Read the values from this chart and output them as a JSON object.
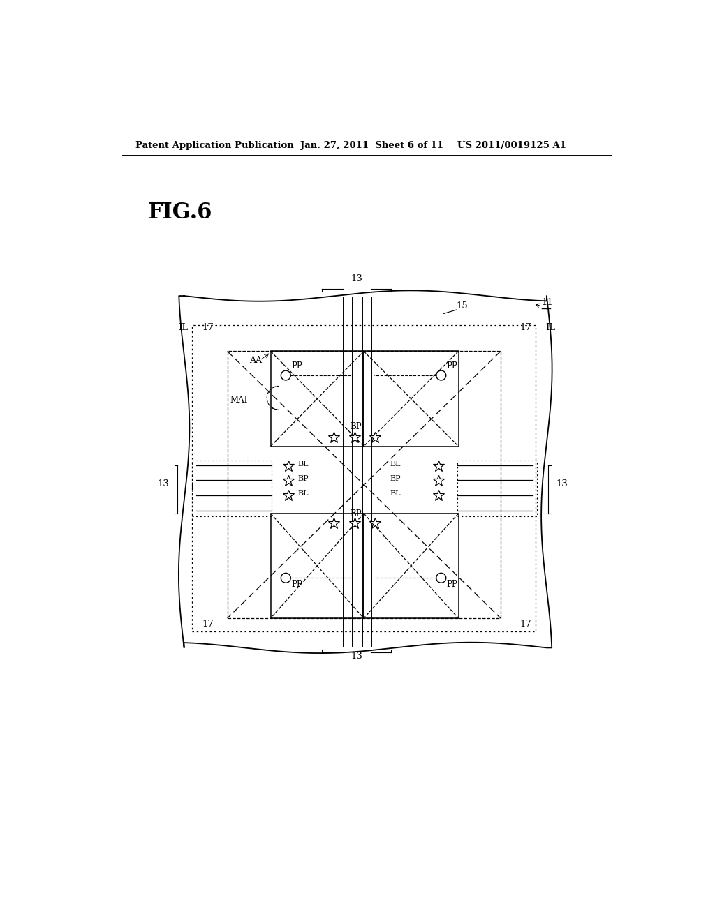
{
  "bg_color": "#ffffff",
  "header_left": "Patent Application Publication",
  "header_mid": "Jan. 27, 2011  Sheet 6 of 11",
  "header_right": "US 2011/0019125 A1",
  "fig_label": "FIG.6"
}
